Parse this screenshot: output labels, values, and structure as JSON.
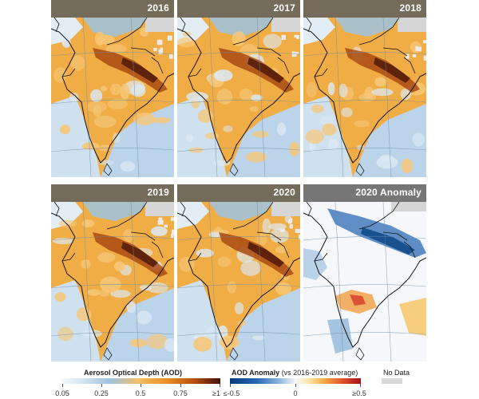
{
  "panels": [
    {
      "id": "p1",
      "title": "2016",
      "kind": "aod"
    },
    {
      "id": "p2",
      "title": "2017",
      "kind": "aod"
    },
    {
      "id": "p3",
      "title": "2018",
      "kind": "aod"
    },
    {
      "id": "p4",
      "title": "2019",
      "kind": "aod"
    },
    {
      "id": "p5",
      "title": "2020",
      "kind": "aod"
    },
    {
      "id": "p6",
      "title": "2020 Anomaly",
      "kind": "anomaly"
    }
  ],
  "legend": {
    "aod": {
      "title": "Aerosol Optical Depth (AOD)",
      "ticks": [
        "0.05",
        "0.25",
        "0.5",
        "0.75",
        "≥1"
      ]
    },
    "anomaly": {
      "title_bold": "AOD Anomaly",
      "title_rest": " (vs 2016-2019 average)",
      "ticks": [
        "≤-0.5",
        "0",
        "≥0.5"
      ]
    },
    "nodata": {
      "label": "No Data"
    }
  },
  "colors": {
    "aod_high": "#3f1005",
    "aod_mid": "#e88f25",
    "aod_low": "#d2e3f0",
    "anomaly_negative": "#053a7a",
    "anomaly_positive": "#a3121a",
    "no_data": "#d8d8d8"
  }
}
